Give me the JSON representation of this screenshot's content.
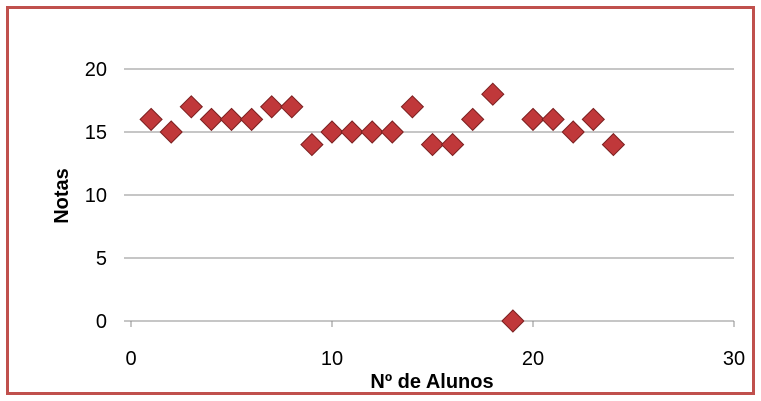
{
  "chart_data": {
    "type": "scatter",
    "title": "",
    "xlabel": "Nº de Alunos",
    "ylabel": "Notas",
    "xlim": [
      0,
      30
    ],
    "ylim": [
      0,
      20
    ],
    "x_ticks": [
      0,
      10,
      20,
      30
    ],
    "y_ticks": [
      0,
      5,
      10,
      15,
      20
    ],
    "grid": "horizontal",
    "legend": "none",
    "marker": "diamond",
    "series": [
      {
        "color": "#c0383a",
        "points": [
          [
            1,
            16
          ],
          [
            2,
            15
          ],
          [
            3,
            17
          ],
          [
            4,
            16
          ],
          [
            5,
            16
          ],
          [
            6,
            16
          ],
          [
            7,
            17
          ],
          [
            8,
            17
          ],
          [
            9,
            14
          ],
          [
            10,
            15
          ],
          [
            11,
            15
          ],
          [
            12,
            15
          ],
          [
            13,
            15
          ],
          [
            14,
            17
          ],
          [
            15,
            14
          ],
          [
            16,
            14
          ],
          [
            17,
            16
          ],
          [
            18,
            18
          ],
          [
            19,
            0
          ],
          [
            20,
            16
          ],
          [
            21,
            16
          ],
          [
            22,
            15
          ],
          [
            23,
            16
          ],
          [
            24,
            14
          ]
        ]
      }
    ]
  },
  "colors": {
    "frame_border": "#c0504d",
    "gridline": "#8c8c8c",
    "marker": "#c0383a",
    "marker_edge": "#7a1f1f"
  }
}
